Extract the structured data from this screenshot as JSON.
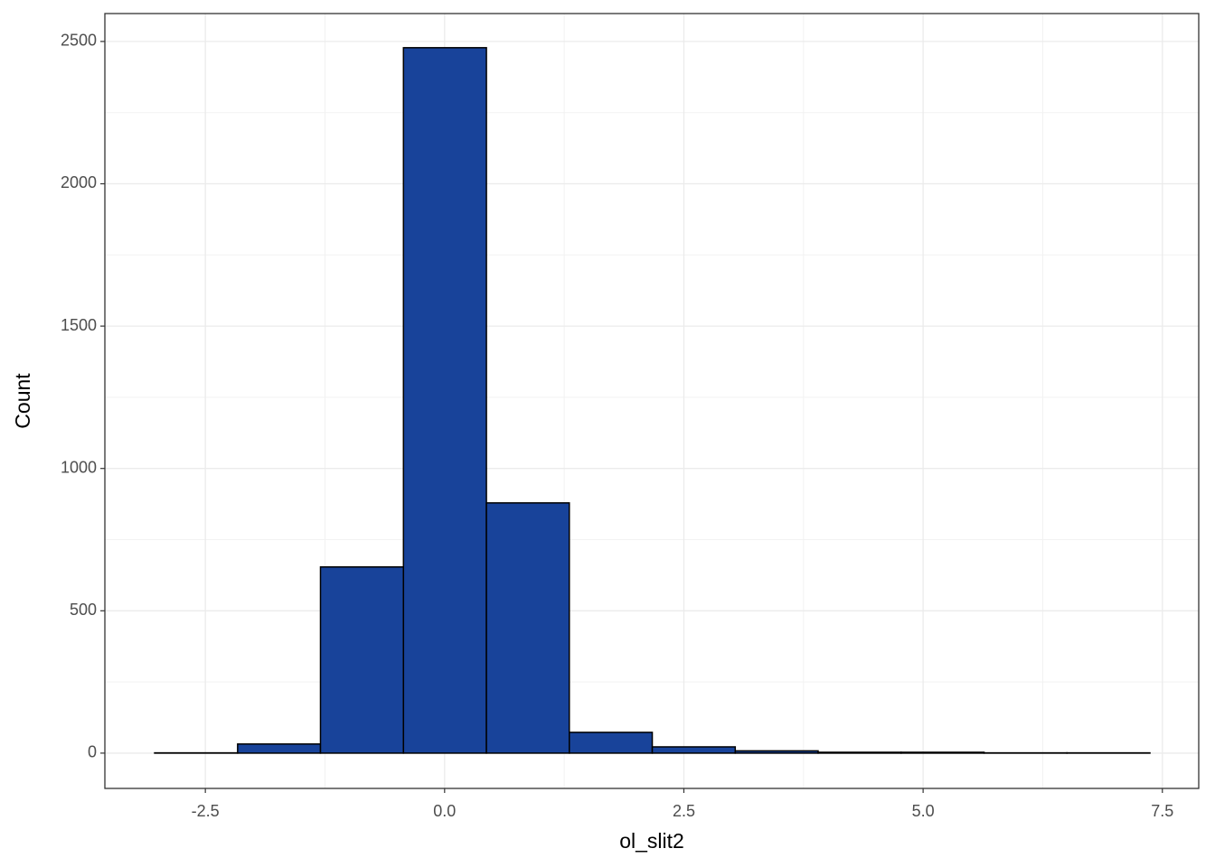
{
  "chart_data": {
    "type": "histogram",
    "x_label": "ol_slit2",
    "y_label": "Count",
    "bins": [
      -3.03,
      -2.163,
      -1.297,
      -0.43,
      0.437,
      1.303,
      2.17,
      3.037,
      3.903,
      4.77,
      5.637,
      6.503,
      7.37
    ],
    "values": [
      1,
      32,
      654,
      2478,
      879,
      73,
      22,
      8,
      3,
      3,
      1,
      1
    ],
    "color": "#18439a",
    "edge_color": "#000000",
    "xlim": [
      -3.55,
      7.88
    ],
    "ylim": [
      -124,
      2598
    ],
    "xticks": [
      -2.5,
      {
        "value": 0,
        "label": "0.0"
      },
      2.5,
      {
        "value": 5,
        "label": "5.0"
      },
      7.5
    ],
    "yticks": [
      0,
      500,
      1000,
      1500,
      2000,
      2500
    ],
    "grid": true
  }
}
